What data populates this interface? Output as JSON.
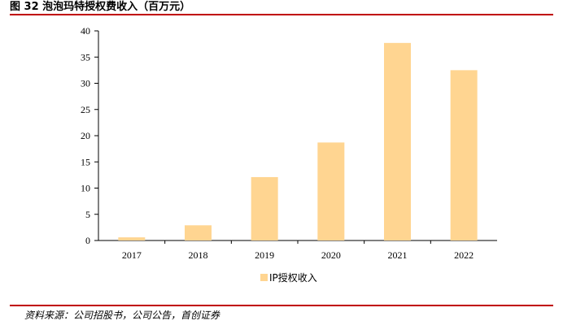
{
  "figure": {
    "title": "图 32  泡泡玛特授权费收入（百万元）",
    "source": "资料来源：公司招股书，公司公告，首创证券"
  },
  "colors": {
    "bar": "#ffd591",
    "rule": "#c00000",
    "axis": "#000000"
  },
  "chart_data": {
    "type": "bar",
    "title": "",
    "xlabel": "",
    "ylabel": "",
    "categories": [
      "2017",
      "2018",
      "2019",
      "2020",
      "2021",
      "2022"
    ],
    "series": [
      {
        "name": "IP授权收入",
        "values": [
          0.6,
          2.9,
          12.1,
          18.7,
          37.7,
          32.5
        ]
      }
    ],
    "ylim": [
      0,
      40
    ],
    "yticks": [
      0,
      5,
      10,
      15,
      20,
      25,
      30,
      35,
      40
    ],
    "grid": false,
    "legend": "bottom-center"
  }
}
